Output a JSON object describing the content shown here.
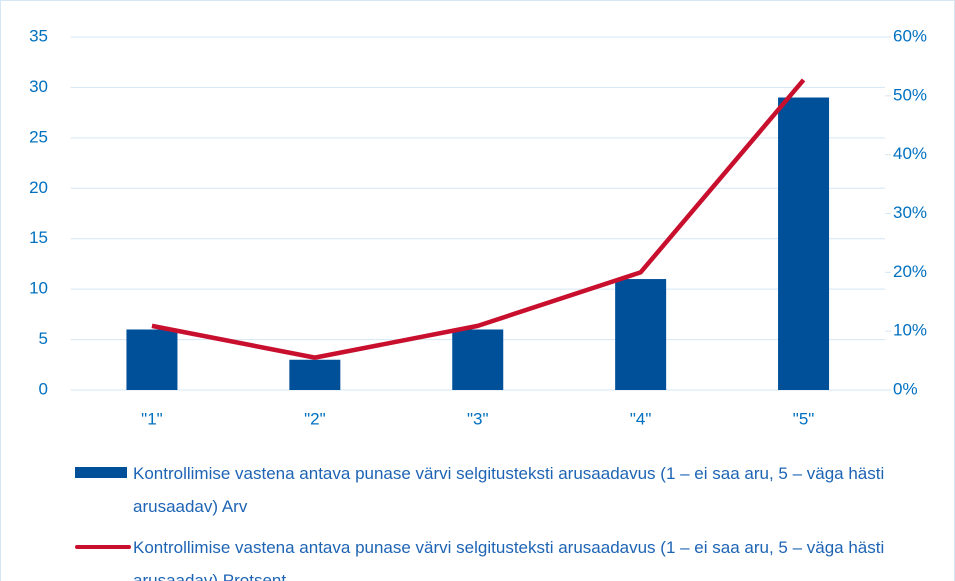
{
  "chart_data": {
    "type": "bar",
    "categories": [
      "\"1\"",
      "\"2\"",
      "\"3\"",
      "\"4\"",
      "\"5\""
    ],
    "series": [
      {
        "name": "Kontrollimise vastena antava punase värvi selgitusteksti arusaadavus (1 – ei saa aru, 5 – väga hästi arusaadav) Arv",
        "type": "bar",
        "color": "#004f99",
        "values": [
          6,
          3,
          6,
          11,
          29
        ]
      },
      {
        "name": "Kontrollimise vastena antava punase värvi selgitusteksti arusaadavus (1 – ei saa aru, 5 – väga hästi arusaadav) Protsent",
        "type": "line",
        "axis": "y2",
        "color": "#c8102e",
        "values": [
          10.9,
          5.5,
          10.9,
          20,
          52.7
        ]
      }
    ],
    "ylim": [
      0,
      35
    ],
    "yticks": [
      0,
      5,
      10,
      15,
      20,
      25,
      30,
      35
    ],
    "y2lim": [
      0,
      60
    ],
    "y2ticks": [
      {
        "value": 0,
        "label": "0%"
      },
      {
        "value": 10,
        "label": "10%"
      },
      {
        "value": 20,
        "label": "20%"
      },
      {
        "value": 30,
        "label": "30%"
      },
      {
        "value": 40,
        "label": "40%"
      },
      {
        "value": 50,
        "label": "50%"
      },
      {
        "value": 60,
        "label": "60%"
      }
    ],
    "grid": true,
    "legend": "bottom"
  }
}
